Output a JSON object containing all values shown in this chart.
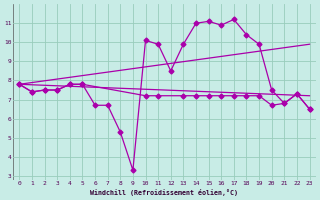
{
  "xlabel": "Windchill (Refroidissement éolien,°C)",
  "background_color": "#c8ece6",
  "line_color": "#aa00aa",
  "grid_color": "#99ccbb",
  "xlim": [
    -0.5,
    23.5
  ],
  "ylim": [
    2.8,
    12.0
  ],
  "yticks": [
    3,
    4,
    5,
    6,
    7,
    8,
    9,
    10,
    11
  ],
  "xticks": [
    0,
    1,
    2,
    3,
    4,
    5,
    6,
    7,
    8,
    9,
    10,
    11,
    12,
    13,
    14,
    15,
    16,
    17,
    18,
    19,
    20,
    21,
    22,
    23
  ],
  "lines": [
    {
      "x": [
        0,
        1,
        2,
        3,
        4,
        5,
        6,
        7,
        8,
        9,
        10,
        11,
        12,
        13,
        14,
        15,
        16,
        17,
        18,
        19,
        20,
        21,
        22,
        23
      ],
      "y": [
        7.8,
        7.4,
        7.5,
        7.5,
        7.8,
        7.8,
        6.7,
        6.7,
        5.3,
        3.3,
        10.1,
        9.9,
        8.5,
        9.9,
        11.0,
        11.1,
        10.9,
        11.2,
        10.4,
        9.9,
        7.5,
        6.8,
        7.3,
        6.5
      ],
      "marker": "D",
      "markersize": 2.5,
      "linewidth": 0.9
    },
    {
      "x": [
        0,
        23
      ],
      "y": [
        7.8,
        7.2
      ],
      "marker": null,
      "markersize": 0,
      "linewidth": 0.9
    },
    {
      "x": [
        0,
        23
      ],
      "y": [
        7.8,
        9.9
      ],
      "marker": null,
      "markersize": 0,
      "linewidth": 0.9
    },
    {
      "x": [
        0,
        1,
        2,
        3,
        4,
        5,
        10,
        11,
        13,
        14,
        15,
        16,
        17,
        18,
        19,
        20,
        21,
        22,
        23
      ],
      "y": [
        7.8,
        7.4,
        7.5,
        7.5,
        7.8,
        7.8,
        7.2,
        7.2,
        7.2,
        7.2,
        7.2,
        7.2,
        7.2,
        7.2,
        7.2,
        6.7,
        6.8,
        7.3,
        6.5
      ],
      "marker": "D",
      "markersize": 2.5,
      "linewidth": 0.9
    }
  ]
}
